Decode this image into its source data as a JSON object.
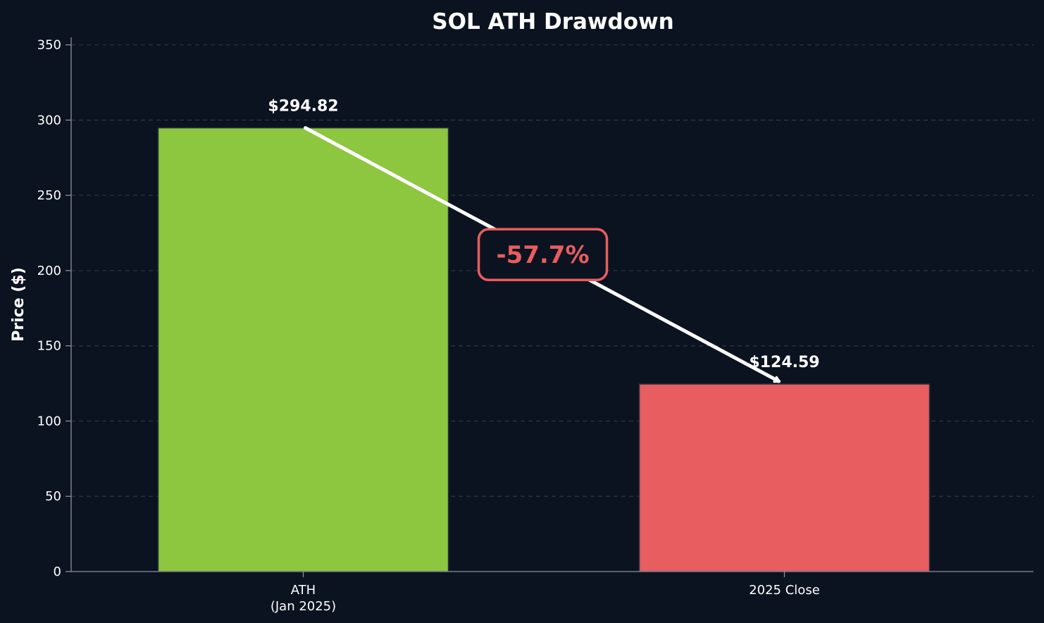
{
  "chart_data": {
    "type": "bar",
    "title": "SOL ATH Drawdown",
    "xlabel": "",
    "ylabel": "Price ($)",
    "ylim": [
      0,
      355
    ],
    "yticks": [
      0,
      50,
      100,
      150,
      200,
      250,
      300,
      350
    ],
    "grid": true,
    "categories": [
      [
        "ATH",
        "(Jan 2025)"
      ],
      [
        "2025 Close"
      ]
    ],
    "values": [
      294.82,
      124.59
    ],
    "data_labels": [
      "$294.82",
      "$124.59"
    ],
    "bar_colors": [
      "#8dc63f",
      "#e85d5f"
    ],
    "annotation": {
      "type": "arrow",
      "from_category": 0,
      "to_category": 1,
      "label": "-57.7%",
      "label_color": "#e85d5f",
      "arrow_color": "#ffffff"
    }
  },
  "colors": {
    "background": "#0c1320",
    "text": "#ffffff",
    "grid": "#2e3645",
    "axis": "#8a909c"
  }
}
